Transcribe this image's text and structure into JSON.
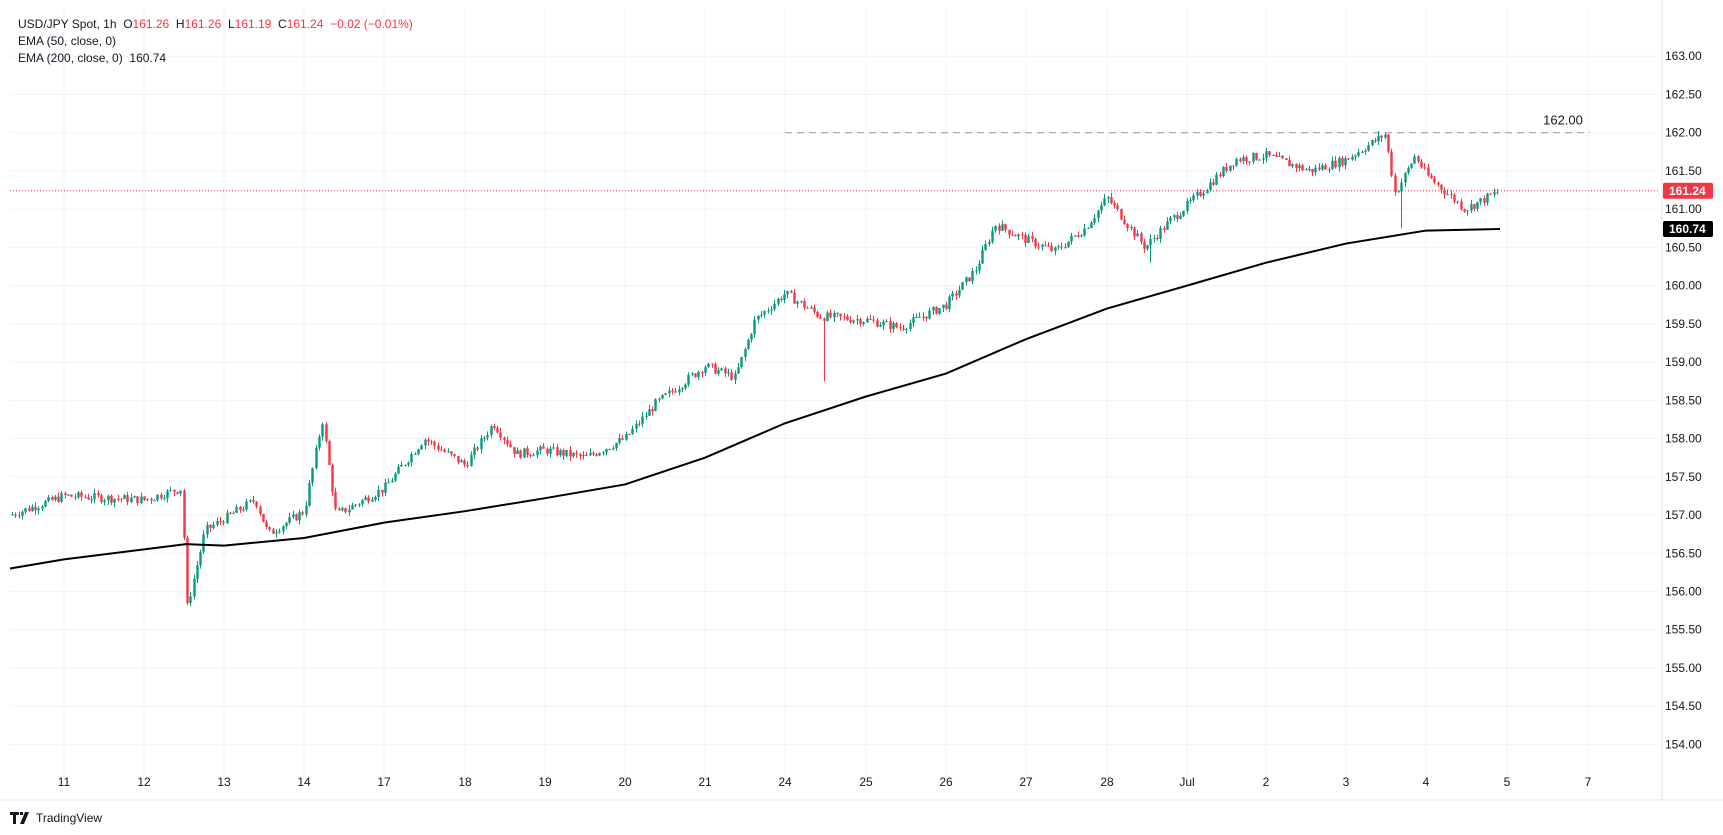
{
  "legend": {
    "symbol": "USD/JPY Spot",
    "interval": "1h",
    "open_label": "O",
    "open": "161.26",
    "high_label": "H",
    "high": "161.26",
    "low_label": "L",
    "low": "161.19",
    "close_label": "C",
    "close": "161.24",
    "change": "−0.02 (−0.01%)",
    "ema50": "EMA (50, close, 0)",
    "ema200": "EMA (200, close, 0)",
    "ema200_value": "160.74"
  },
  "branding": {
    "name": "TradingView"
  },
  "colors": {
    "up": "#089981",
    "down": "#f23645",
    "ema200": "#000000",
    "price_line": "#f23645",
    "grid": "#f0f3fa",
    "level_line": "#9598a1"
  },
  "chart_data": {
    "type": "candlestick",
    "timeframe": "1h",
    "y_ticks": [
      "163.00",
      "162.50",
      "162.00",
      "161.50",
      "161.00",
      "160.50",
      "160.00",
      "159.50",
      "159.00",
      "158.50",
      "158.00",
      "157.50",
      "157.00",
      "156.50",
      "156.00",
      "155.50",
      "155.00",
      "154.50",
      "154.00"
    ],
    "x_ticks": [
      "11",
      "12",
      "13",
      "14",
      "17",
      "18",
      "19",
      "20",
      "21",
      "24",
      "25",
      "26",
      "27",
      "28",
      "Jul",
      "2",
      "3",
      "4",
      "5",
      "7"
    ],
    "ylim": [
      153.6,
      163.5
    ],
    "grid": true,
    "last_price": 161.24,
    "last_price_label": "161.24",
    "ema200_label": "160.74",
    "horizontal_level": {
      "value": 162.0,
      "label": "162.00",
      "from": "24"
    },
    "session_path": [
      {
        "x": "10",
        "y": 157.0
      },
      {
        "x": "11",
        "y": 157.25
      },
      {
        "x": "12",
        "y": 157.2
      },
      {
        "x": "12.5",
        "y": 157.35
      },
      {
        "x": "12.6",
        "y": 155.75
      },
      {
        "x": "12.85",
        "y": 156.8
      },
      {
        "x": "13.4",
        "y": 157.2
      },
      {
        "x": "13.6",
        "y": 156.75
      },
      {
        "x": "14",
        "y": 157.05
      },
      {
        "x": "14.2",
        "y": 158.25
      },
      {
        "x": "14.4",
        "y": 157.0
      },
      {
        "x": "17",
        "y": 157.35
      },
      {
        "x": "17.5",
        "y": 158.0
      },
      {
        "x": "18",
        "y": 157.65
      },
      {
        "x": "18.3",
        "y": 158.2
      },
      {
        "x": "18.6",
        "y": 157.8
      },
      {
        "x": "19",
        "y": 157.85
      },
      {
        "x": "19.5",
        "y": 157.75
      },
      {
        "x": "20",
        "y": 158.0
      },
      {
        "x": "20.5",
        "y": 158.45
      },
      {
        "x": "21",
        "y": 158.95
      },
      {
        "x": "21.5",
        "y": 158.8
      },
      {
        "x": "22",
        "y": 159.55
      },
      {
        "x": "24",
        "y": 159.9
      },
      {
        "x": "24.5",
        "y": 159.6
      },
      {
        "x": "25",
        "y": 159.55
      },
      {
        "x": "25.5",
        "y": 159.45
      },
      {
        "x": "26",
        "y": 159.75
      },
      {
        "x": "26.5",
        "y": 160.2
      },
      {
        "x": "26.7",
        "y": 160.8
      },
      {
        "x": "27",
        "y": 160.6
      },
      {
        "x": "27.4",
        "y": 160.45
      },
      {
        "x": "27.8",
        "y": 160.75
      },
      {
        "x": "28",
        "y": 161.15
      },
      {
        "x": "28.5",
        "y": 160.5
      },
      {
        "x": "28.8",
        "y": 160.85
      },
      {
        "x": "Jul",
        "y": 161.05
      },
      {
        "x": "Jul.6",
        "y": 161.65
      },
      {
        "x": "2",
        "y": 161.7
      },
      {
        "x": "2.5",
        "y": 161.5
      },
      {
        "x": "3",
        "y": 161.65
      },
      {
        "x": "3.4",
        "y": 161.98
      },
      {
        "x": "3.6",
        "y": 161.2
      },
      {
        "x": "3.8",
        "y": 161.7
      },
      {
        "x": "4",
        "y": 161.45
      },
      {
        "x": "4.5",
        "y": 161.0
      },
      {
        "x": "4.9",
        "y": 161.24
      }
    ],
    "ema200": [
      {
        "x": "10",
        "y": 156.3
      },
      {
        "x": "11",
        "y": 156.42
      },
      {
        "x": "12",
        "y": 156.55
      },
      {
        "x": "12.6",
        "y": 156.62
      },
      {
        "x": "13",
        "y": 156.6
      },
      {
        "x": "14",
        "y": 156.7
      },
      {
        "x": "17",
        "y": 156.9
      },
      {
        "x": "18",
        "y": 157.05
      },
      {
        "x": "19",
        "y": 157.22
      },
      {
        "x": "20",
        "y": 157.4
      },
      {
        "x": "21",
        "y": 157.75
      },
      {
        "x": "24",
        "y": 158.2
      },
      {
        "x": "25",
        "y": 158.55
      },
      {
        "x": "26",
        "y": 158.85
      },
      {
        "x": "27",
        "y": 159.3
      },
      {
        "x": "28",
        "y": 159.7
      },
      {
        "x": "Jul",
        "y": 160.0
      },
      {
        "x": "2",
        "y": 160.3
      },
      {
        "x": "3",
        "y": 160.55
      },
      {
        "x": "4",
        "y": 160.72
      },
      {
        "x": "4.9",
        "y": 160.74
      }
    ]
  }
}
